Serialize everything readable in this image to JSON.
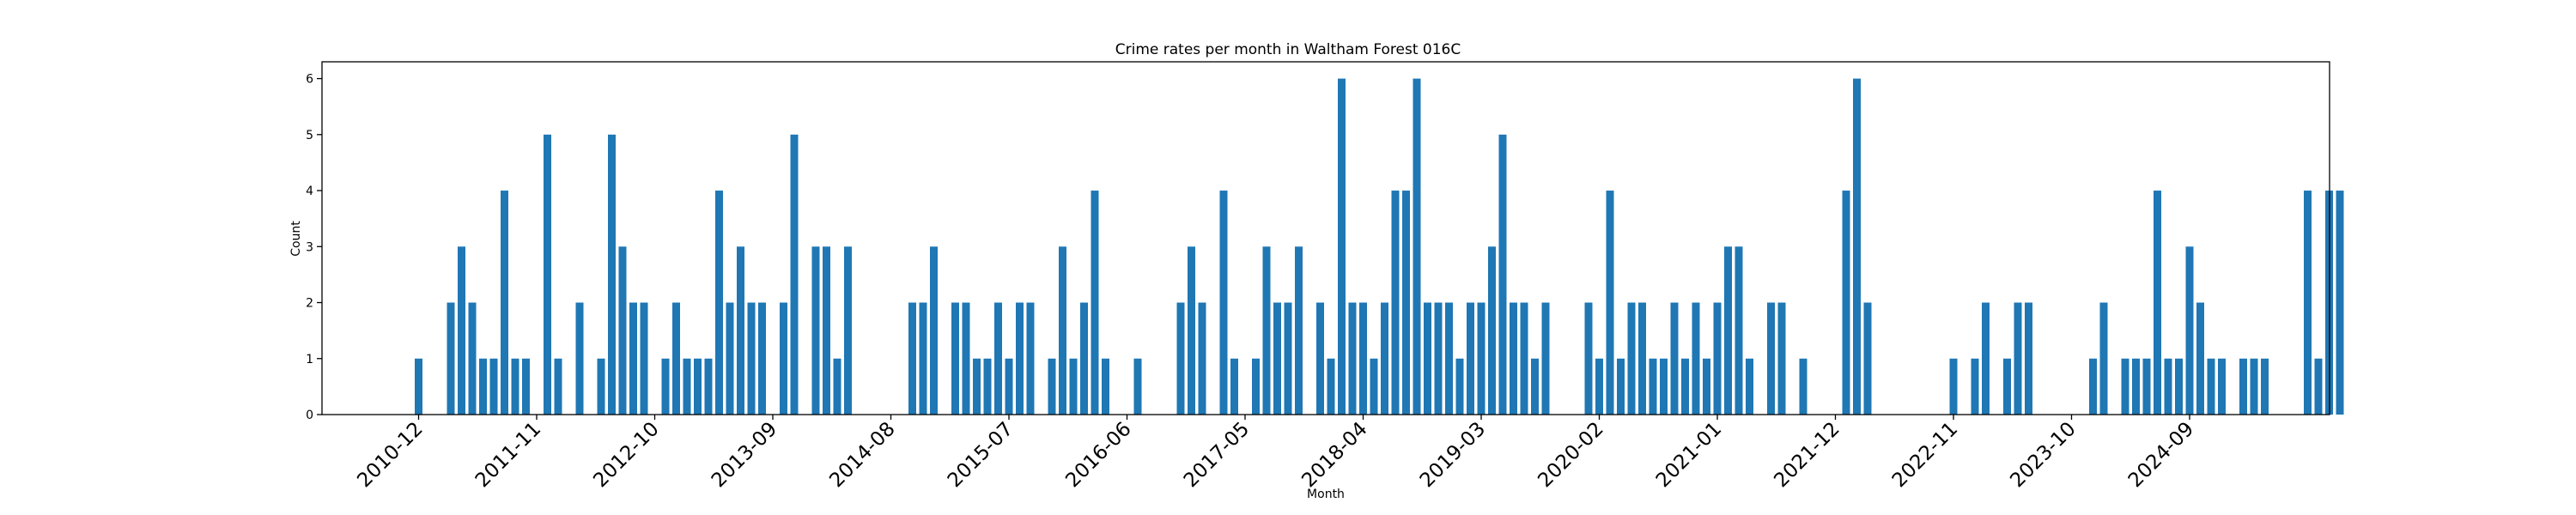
{
  "chart_data": {
    "type": "bar",
    "title": "Crime rates per month in Waltham Forest 016C",
    "xlabel": "Month",
    "ylabel": "Count",
    "ylim": [
      0,
      6.3
    ],
    "yticks": [
      0,
      1,
      2,
      3,
      4,
      5,
      6
    ],
    "grid": false,
    "bar_color": "#1f77b4",
    "start_month": "2010-12",
    "xtick_labels": [
      "2010-12",
      "2011-11",
      "2012-10",
      "2013-09",
      "2014-08",
      "2015-07",
      "2016-06",
      "2017-05",
      "2018-04",
      "2019-03",
      "2020-02",
      "2021-01",
      "2021-12",
      "2022-11",
      "2023-10",
      "2024-09"
    ],
    "values": [
      1,
      0,
      0,
      2,
      3,
      2,
      1,
      1,
      4,
      1,
      1,
      0,
      5,
      1,
      0,
      2,
      0,
      1,
      5,
      3,
      2,
      2,
      0,
      1,
      2,
      1,
      1,
      1,
      4,
      2,
      3,
      2,
      2,
      0,
      2,
      5,
      0,
      3,
      3,
      1,
      3,
      0,
      0,
      0,
      0,
      0,
      2,
      2,
      3,
      0,
      2,
      2,
      1,
      1,
      2,
      1,
      2,
      2,
      0,
      1,
      3,
      1,
      2,
      4,
      1,
      0,
      0,
      1,
      0,
      0,
      0,
      2,
      3,
      2,
      0,
      4,
      1,
      0,
      1,
      3,
      2,
      2,
      3,
      0,
      2,
      1,
      6,
      2,
      2,
      1,
      2,
      4,
      4,
      6,
      2,
      2,
      2,
      1,
      2,
      2,
      3,
      5,
      2,
      2,
      1,
      2,
      0,
      0,
      0,
      2,
      1,
      4,
      1,
      2,
      2,
      1,
      1,
      2,
      1,
      2,
      1,
      2,
      3,
      3,
      1,
      0,
      2,
      2,
      0,
      1,
      0,
      0,
      0,
      4,
      6,
      2,
      0,
      0,
      0,
      0,
      0,
      0,
      0,
      1,
      0,
      1,
      2,
      0,
      1,
      2,
      2,
      0,
      0,
      0,
      0,
      0,
      1,
      2,
      0,
      1,
      1,
      1,
      4,
      1,
      1,
      3,
      2,
      1,
      1,
      0,
      1,
      1,
      1,
      0,
      0,
      0,
      4,
      1,
      4,
      4
    ]
  }
}
